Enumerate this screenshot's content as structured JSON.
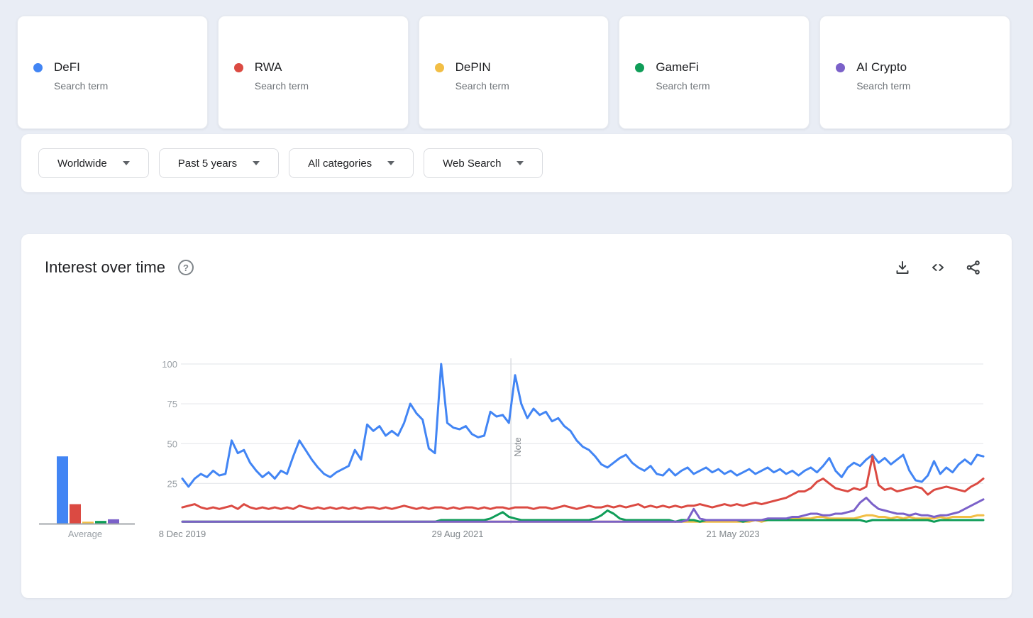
{
  "cards": [
    {
      "label": "DeFI",
      "sublabel": "Search term",
      "color": "#4285F4"
    },
    {
      "label": "RWA",
      "sublabel": "Search term",
      "color": "#DB4A42"
    },
    {
      "label": "DePIN",
      "sublabel": "Search term",
      "color": "#F2BE45"
    },
    {
      "label": "GameFi",
      "sublabel": "Search term",
      "color": "#0F9D58"
    },
    {
      "label": "AI Crypto",
      "sublabel": "Search term",
      "color": "#7B61C9"
    }
  ],
  "filters": [
    {
      "label": "Worldwide"
    },
    {
      "label": "Past 5 years"
    },
    {
      "label": "All categories"
    },
    {
      "label": "Web Search"
    }
  ],
  "panel": {
    "title": "Interest over time",
    "help_label": "?"
  },
  "actions": {
    "download": "download-icon",
    "embed": "embed-code-icon",
    "share": "share-icon"
  },
  "chart_data": {
    "type": "line",
    "title": "Interest over time",
    "xlabel": "",
    "ylabel": "",
    "ylim": [
      0,
      100
    ],
    "yticks": [
      100,
      75,
      50,
      25
    ],
    "grid": true,
    "legend_position": "none",
    "xticks": [
      {
        "label": "8 Dec 2019",
        "position": 0
      },
      {
        "label": "29 Aug 2021",
        "position": 0.3437
      },
      {
        "label": "21 May 2023",
        "position": 0.6874
      }
    ],
    "note": {
      "label": "Note",
      "position": 0.4102
    },
    "avg_chart": {
      "label": "Average"
    },
    "series": [
      {
        "name": "DeFI",
        "color": "#4285F4",
        "average": 42,
        "values": [
          28,
          23,
          28,
          31,
          29,
          33,
          30,
          31,
          52,
          44,
          46,
          38,
          33,
          29,
          32,
          28,
          33,
          31,
          42,
          52,
          46,
          40,
          35,
          31,
          29,
          32,
          34,
          36,
          46,
          40,
          62,
          58,
          61,
          55,
          58,
          55,
          63,
          75,
          69,
          65,
          47,
          44,
          100,
          63,
          60,
          59,
          61,
          56,
          54,
          55,
          70,
          67,
          68,
          63,
          93,
          75,
          66,
          72,
          68,
          70,
          64,
          66,
          61,
          58,
          52,
          48,
          46,
          42,
          37,
          35,
          38,
          41,
          43,
          38,
          35,
          33,
          36,
          31,
          30,
          34,
          30,
          33,
          35,
          31,
          33,
          35,
          32,
          34,
          31,
          33,
          30,
          32,
          34,
          31,
          33,
          35,
          32,
          34,
          31,
          33,
          30,
          33,
          35,
          32,
          36,
          41,
          33,
          29,
          35,
          38,
          36,
          40,
          43,
          38,
          41,
          37,
          40,
          43,
          33,
          27,
          26,
          30,
          39,
          31,
          35,
          32,
          37,
          40,
          37,
          43,
          42
        ]
      },
      {
        "name": "RWA",
        "color": "#DB4A42",
        "average": 12,
        "values": [
          10,
          11,
          12,
          10,
          9,
          10,
          9,
          10,
          11,
          9,
          12,
          10,
          9,
          10,
          9,
          10,
          9,
          10,
          9,
          11,
          10,
          9,
          10,
          9,
          10,
          9,
          10,
          9,
          10,
          9,
          10,
          10,
          9,
          10,
          9,
          10,
          11,
          10,
          9,
          10,
          9,
          10,
          10,
          9,
          10,
          9,
          10,
          10,
          9,
          10,
          9,
          10,
          10,
          9,
          10,
          10,
          10,
          9,
          10,
          10,
          9,
          10,
          11,
          10,
          9,
          10,
          11,
          10,
          10,
          11,
          10,
          11,
          10,
          11,
          12,
          10,
          11,
          10,
          11,
          10,
          11,
          10,
          11,
          11,
          12,
          11,
          10,
          11,
          12,
          11,
          12,
          11,
          12,
          13,
          12,
          13,
          14,
          15,
          16,
          18,
          20,
          20,
          22,
          26,
          28,
          25,
          22,
          21,
          20,
          22,
          21,
          23,
          42,
          24,
          21,
          22,
          20,
          21,
          22,
          23,
          22,
          18,
          21,
          22,
          23,
          22,
          21,
          20,
          23,
          25,
          28
        ]
      },
      {
        "name": "DePIN",
        "color": "#F2BE45",
        "average": 1,
        "values": [
          1,
          1,
          1,
          1,
          1,
          1,
          1,
          1,
          1,
          1,
          1,
          1,
          1,
          1,
          1,
          1,
          1,
          1,
          1,
          1,
          1,
          1,
          1,
          1,
          1,
          1,
          1,
          1,
          1,
          1,
          1,
          1,
          1,
          1,
          1,
          1,
          1,
          1,
          1,
          1,
          1,
          1,
          1,
          1,
          1,
          1,
          1,
          1,
          1,
          1,
          1,
          1,
          1,
          1,
          1,
          1,
          1,
          1,
          1,
          1,
          1,
          1,
          1,
          1,
          1,
          1,
          1,
          1,
          1,
          1,
          1,
          1,
          1,
          1,
          1,
          1,
          1,
          1,
          1,
          1,
          1,
          1,
          1,
          1,
          1,
          1,
          1,
          1,
          1,
          1,
          1,
          1,
          1,
          2,
          1,
          2,
          2,
          2,
          2,
          3,
          3,
          3,
          3,
          4,
          4,
          3,
          3,
          3,
          3,
          3,
          4,
          5,
          5,
          4,
          4,
          3,
          4,
          3,
          4,
          3,
          3,
          3,
          3,
          4,
          3,
          4,
          4,
          4,
          4,
          5,
          5
        ]
      },
      {
        "name": "GameFi",
        "color": "#0F9D58",
        "average": 1.5,
        "values": [
          1,
          1,
          1,
          1,
          1,
          1,
          1,
          1,
          1,
          1,
          1,
          1,
          1,
          1,
          1,
          1,
          1,
          1,
          1,
          1,
          1,
          1,
          1,
          1,
          1,
          1,
          1,
          1,
          1,
          1,
          1,
          1,
          1,
          1,
          1,
          1,
          1,
          1,
          1,
          1,
          1,
          1,
          2,
          2,
          2,
          2,
          2,
          2,
          2,
          2,
          3,
          5,
          7,
          4,
          3,
          2,
          2,
          2,
          2,
          2,
          2,
          2,
          2,
          2,
          2,
          2,
          2,
          3,
          5,
          8,
          6,
          3,
          2,
          2,
          2,
          2,
          2,
          2,
          2,
          2,
          1,
          2,
          2,
          2,
          1,
          2,
          2,
          2,
          2,
          2,
          2,
          1,
          2,
          2,
          2,
          2,
          2,
          2,
          2,
          2,
          2,
          2,
          2,
          2,
          2,
          2,
          2,
          2,
          2,
          2,
          2,
          1,
          2,
          2,
          2,
          2,
          2,
          2,
          2,
          2,
          2,
          2,
          1,
          2,
          2,
          2,
          2,
          2,
          2,
          2,
          2
        ]
      },
      {
        "name": "AI Crypto",
        "color": "#7B61C9",
        "average": 2.5,
        "values": [
          1,
          1,
          1,
          1,
          1,
          1,
          1,
          1,
          1,
          1,
          1,
          1,
          1,
          1,
          1,
          1,
          1,
          1,
          1,
          1,
          1,
          1,
          1,
          1,
          1,
          1,
          1,
          1,
          1,
          1,
          1,
          1,
          1,
          1,
          1,
          1,
          1,
          1,
          1,
          1,
          1,
          1,
          1,
          1,
          1,
          1,
          1,
          1,
          1,
          1,
          1,
          1,
          1,
          1,
          1,
          1,
          1,
          1,
          1,
          1,
          1,
          1,
          1,
          1,
          1,
          1,
          1,
          1,
          1,
          1,
          1,
          1,
          1,
          1,
          1,
          1,
          1,
          1,
          1,
          1,
          1,
          1,
          2,
          9,
          3,
          2,
          2,
          2,
          2,
          2,
          2,
          2,
          2,
          2,
          2,
          3,
          3,
          3,
          3,
          4,
          4,
          5,
          6,
          6,
          5,
          5,
          6,
          6,
          7,
          8,
          13,
          16,
          12,
          9,
          8,
          7,
          6,
          6,
          5,
          6,
          5,
          5,
          4,
          5,
          5,
          6,
          7,
          9,
          11,
          13,
          15
        ]
      }
    ]
  }
}
